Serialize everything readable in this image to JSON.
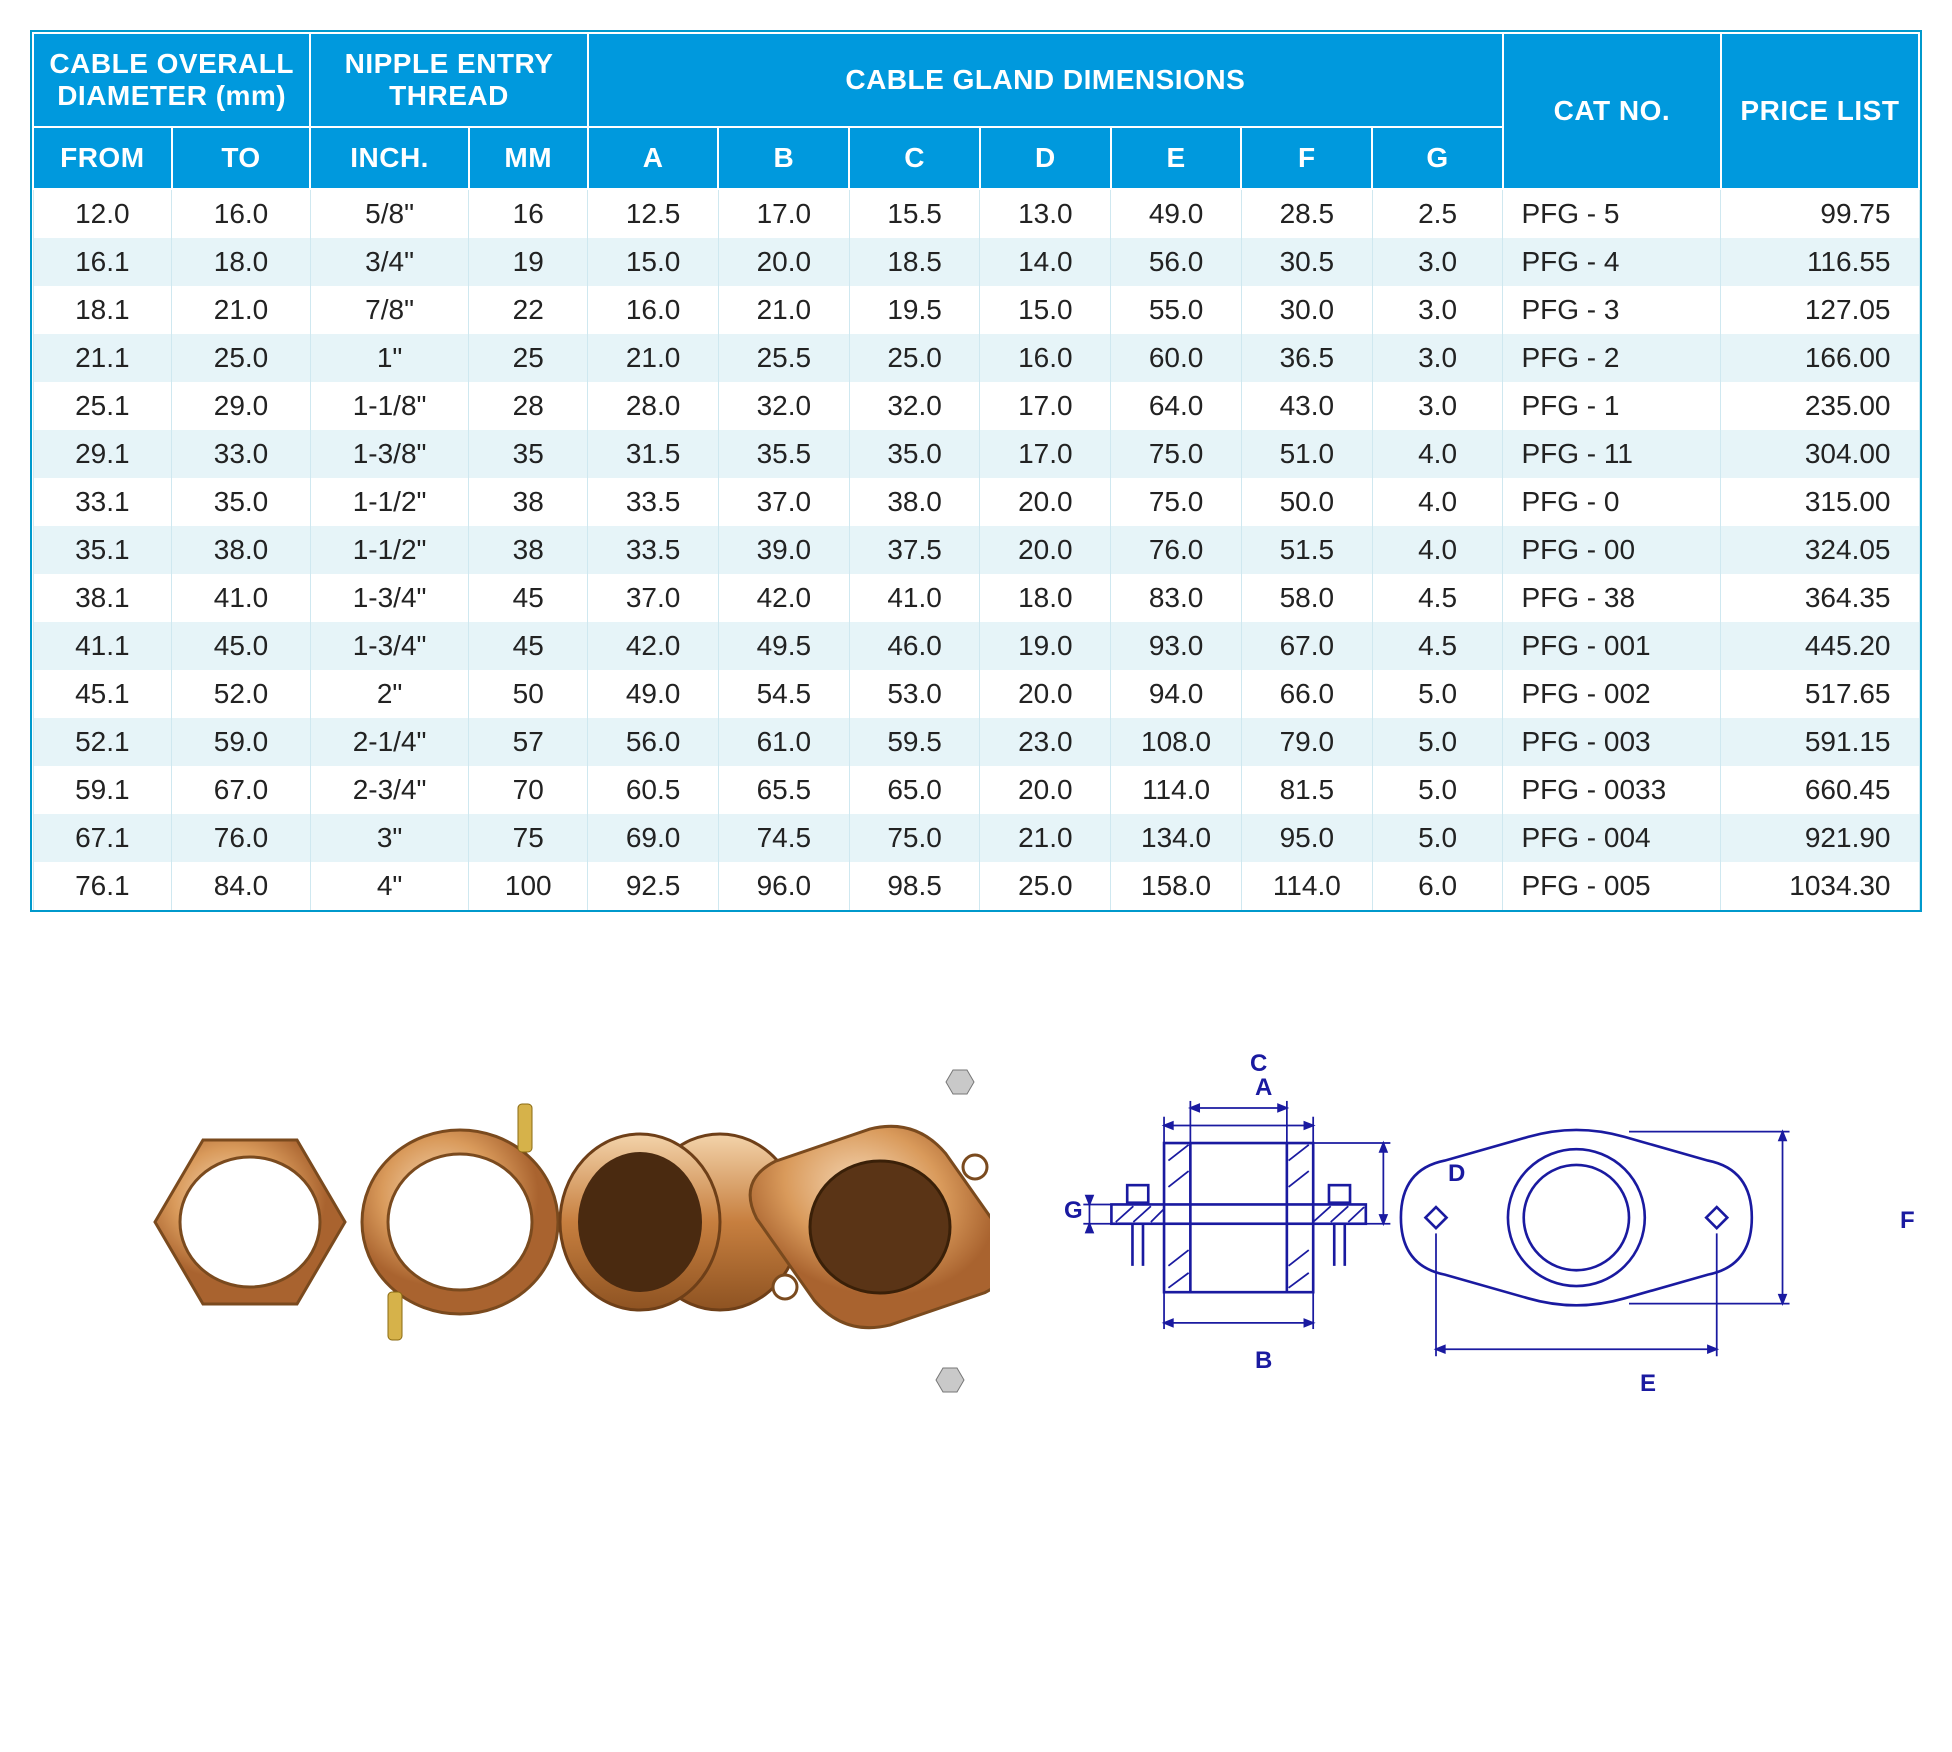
{
  "table": {
    "headers": {
      "cable_overall_diameter": "CABLE OVERALL DIAMETER (mm)",
      "nipple_entry_thread": "NIPPLE ENTRY THREAD",
      "cable_gland_dimensions": "CABLE GLAND DIMENSIONS",
      "cat_no": "CAT NO.",
      "price_list": "PRICE LIST",
      "from": "FROM",
      "to": "TO",
      "inch": "INCH.",
      "mm": "MM",
      "A": "A",
      "B": "B",
      "C": "C",
      "D": "D",
      "E": "E",
      "F": "F",
      "G": "G"
    },
    "rows": [
      {
        "from": "12.0",
        "to": "16.0",
        "inch": "5/8\"",
        "mm": "16",
        "A": "12.5",
        "B": "17.0",
        "C": "15.5",
        "D": "13.0",
        "E": "49.0",
        "F": "28.5",
        "G": "2.5",
        "cat": "PFG - 5",
        "price": "99.75"
      },
      {
        "from": "16.1",
        "to": "18.0",
        "inch": "3/4\"",
        "mm": "19",
        "A": "15.0",
        "B": "20.0",
        "C": "18.5",
        "D": "14.0",
        "E": "56.0",
        "F": "30.5",
        "G": "3.0",
        "cat": "PFG - 4",
        "price": "116.55"
      },
      {
        "from": "18.1",
        "to": "21.0",
        "inch": "7/8\"",
        "mm": "22",
        "A": "16.0",
        "B": "21.0",
        "C": "19.5",
        "D": "15.0",
        "E": "55.0",
        "F": "30.0",
        "G": "3.0",
        "cat": "PFG - 3",
        "price": "127.05"
      },
      {
        "from": "21.1",
        "to": "25.0",
        "inch": "1\"",
        "mm": "25",
        "A": "21.0",
        "B": "25.5",
        "C": "25.0",
        "D": "16.0",
        "E": "60.0",
        "F": "36.5",
        "G": "3.0",
        "cat": "PFG - 2",
        "price": "166.00"
      },
      {
        "from": "25.1",
        "to": "29.0",
        "inch": "1-1/8\"",
        "mm": "28",
        "A": "28.0",
        "B": "32.0",
        "C": "32.0",
        "D": "17.0",
        "E": "64.0",
        "F": "43.0",
        "G": "3.0",
        "cat": "PFG - 1",
        "price": "235.00"
      },
      {
        "from": "29.1",
        "to": "33.0",
        "inch": "1-3/8\"",
        "mm": "35",
        "A": "31.5",
        "B": "35.5",
        "C": "35.0",
        "D": "17.0",
        "E": "75.0",
        "F": "51.0",
        "G": "4.0",
        "cat": "PFG - 11",
        "price": "304.00"
      },
      {
        "from": "33.1",
        "to": "35.0",
        "inch": "1-1/2\"",
        "mm": "38",
        "A": "33.5",
        "B": "37.0",
        "C": "38.0",
        "D": "20.0",
        "E": "75.0",
        "F": "50.0",
        "G": "4.0",
        "cat": "PFG - 0",
        "price": "315.00"
      },
      {
        "from": "35.1",
        "to": "38.0",
        "inch": "1-1/2\"",
        "mm": "38",
        "A": "33.5",
        "B": "39.0",
        "C": "37.5",
        "D": "20.0",
        "E": "76.0",
        "F": "51.5",
        "G": "4.0",
        "cat": "PFG - 00",
        "price": "324.05"
      },
      {
        "from": "38.1",
        "to": "41.0",
        "inch": "1-3/4\"",
        "mm": "45",
        "A": "37.0",
        "B": "42.0",
        "C": "41.0",
        "D": "18.0",
        "E": "83.0",
        "F": "58.0",
        "G": "4.5",
        "cat": "PFG - 38",
        "price": "364.35"
      },
      {
        "from": "41.1",
        "to": "45.0",
        "inch": "1-3/4\"",
        "mm": "45",
        "A": "42.0",
        "B": "49.5",
        "C": "46.0",
        "D": "19.0",
        "E": "93.0",
        "F": "67.0",
        "G": "4.5",
        "cat": "PFG - 001",
        "price": "445.20"
      },
      {
        "from": "45.1",
        "to": "52.0",
        "inch": "2\"",
        "mm": "50",
        "A": "49.0",
        "B": "54.5",
        "C": "53.0",
        "D": "20.0",
        "E": "94.0",
        "F": "66.0",
        "G": "5.0",
        "cat": "PFG - 002",
        "price": "517.65"
      },
      {
        "from": "52.1",
        "to": "59.0",
        "inch": "2-1/4\"",
        "mm": "57",
        "A": "56.0",
        "B": "61.0",
        "C": "59.5",
        "D": "23.0",
        "E": "108.0",
        "F": "79.0",
        "G": "5.0",
        "cat": "PFG - 003",
        "price": "591.15"
      },
      {
        "from": "59.1",
        "to": "67.0",
        "inch": "2-3/4\"",
        "mm": "70",
        "A": "60.5",
        "B": "65.5",
        "C": "65.0",
        "D": "20.0",
        "E": "114.0",
        "F": "81.5",
        "G": "5.0",
        "cat": "PFG - 0033",
        "price": "660.45"
      },
      {
        "from": "67.1",
        "to": "76.0",
        "inch": "3\"",
        "mm": "75",
        "A": "69.0",
        "B": "74.5",
        "C": "75.0",
        "D": "21.0",
        "E": "134.0",
        "F": "95.0",
        "G": "5.0",
        "cat": "PFG - 004",
        "price": "921.90"
      },
      {
        "from": "76.1",
        "to": "84.0",
        "inch": "4\"",
        "mm": "100",
        "A": "92.5",
        "B": "96.0",
        "C": "98.5",
        "D": "25.0",
        "E": "158.0",
        "F": "114.0",
        "G": "6.0",
        "cat": "PFG - 005",
        "price": "1034.30"
      }
    ],
    "colors": {
      "header_bg": "#0099dd",
      "header_text": "#ffffff",
      "row_alt_bg": "#e6f4f8",
      "border": "#0099cc",
      "cell_text": "#222222"
    },
    "fonts": {
      "header_size_pt": 20,
      "cell_size_pt": 20,
      "family": "Arial"
    }
  },
  "diagram": {
    "labels": [
      "A",
      "B",
      "C",
      "D",
      "E",
      "F",
      "G"
    ],
    "label_color": "#1a1aa0",
    "line_color": "#1a1aa0",
    "hatch_color": "#1a1aa0"
  }
}
